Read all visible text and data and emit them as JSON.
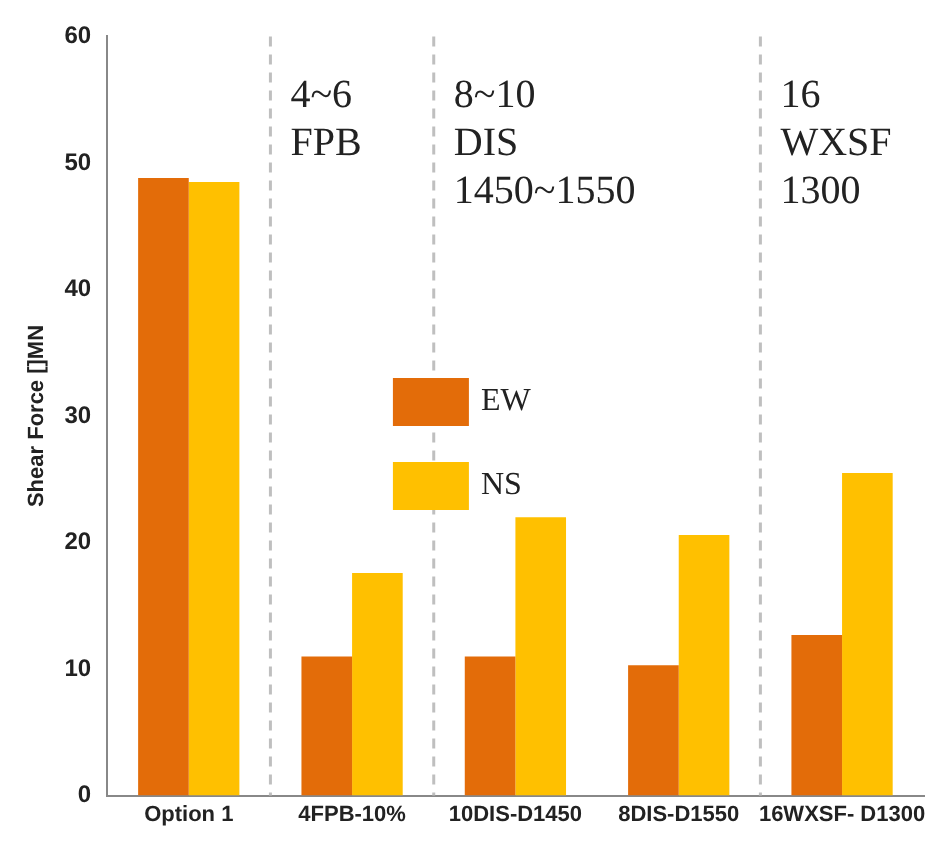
{
  "chart_data": {
    "type": "bar",
    "ylabel": "Shear Force []MN",
    "categories": [
      "Option 1",
      "4FPB-10%",
      "10DIS-D1450",
      "8DIS-D1550",
      "16WXSF- D1300"
    ],
    "series": [
      {
        "name": "EW",
        "color": "#e36c09",
        "values": [
          48.8,
          11,
          11,
          10.3,
          12.7
        ]
      },
      {
        "name": "NS",
        "color": "#ffc000",
        "values": [
          48.5,
          17.6,
          22,
          20.6,
          25.5
        ]
      }
    ],
    "ylim": [
      0,
      60
    ],
    "yticks": [
      0,
      10,
      20,
      30,
      40,
      50,
      60
    ],
    "grid": false,
    "legend": "center",
    "annotations": [
      "4~6\nFPB",
      "8~10\nDIS\n1450~1550",
      "16\nWXSF\n1300"
    ]
  }
}
